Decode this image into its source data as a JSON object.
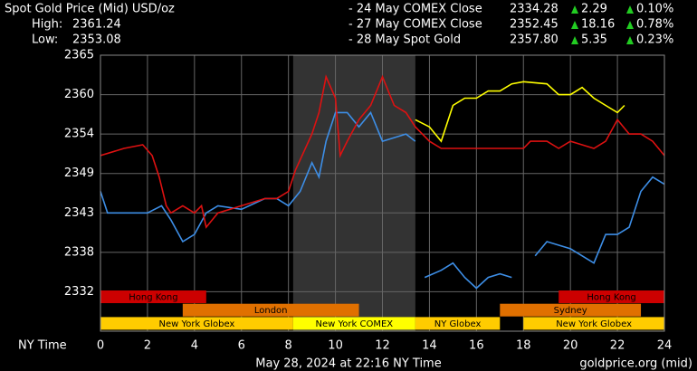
{
  "chart_data": {
    "type": "line",
    "title": "Spot Gold Price (Mid) USD/oz",
    "stats": [
      {
        "label": "High:",
        "value": "2361.24"
      },
      {
        "label": "Low:",
        "value": "2353.08"
      }
    ],
    "series": [
      {
        "name": "- 24 May COMEX Close",
        "color": "#3d8ee6",
        "price": "2334.28",
        "change": "2.29",
        "change_pct": "0.10%",
        "x": [
          0,
          0.3,
          1,
          2,
          2.6,
          3,
          3.5,
          4,
          4.5,
          5,
          6,
          7,
          7.5,
          8,
          8.5,
          9,
          9.3,
          9.6,
          10,
          10.5,
          11,
          11.5,
          12,
          13,
          13.4,
          null,
          13.8,
          14.5,
          15,
          15.5,
          16,
          16.5,
          17,
          17.5,
          null,
          18.5,
          19,
          20,
          21,
          21.5,
          22,
          22.5,
          23,
          23.5,
          24
        ],
        "values": [
          2346,
          2343,
          2343,
          2343,
          2344,
          2342,
          2339,
          2340,
          2343,
          2344,
          2343.5,
          2345,
          2345,
          2344,
          2346,
          2350,
          2348,
          2353,
          2357,
          2357,
          2355,
          2357,
          2353,
          2354,
          2353,
          null,
          2334,
          2335,
          2336,
          2334,
          2332.5,
          2334,
          2334.5,
          2334,
          null,
          2337,
          2339,
          2338,
          2336,
          2340,
          2340,
          2341,
          2346,
          2348,
          2347
        ]
      },
      {
        "name": "- 27 May COMEX Close",
        "color": "#dd1111",
        "price": "2352.45",
        "change": "18.16",
        "change_pct": "0.78%",
        "x": [
          0,
          1,
          1.8,
          2.2,
          2.5,
          2.8,
          3,
          3.5,
          4,
          4.3,
          4.5,
          5,
          6,
          7,
          7.5,
          8,
          8.3,
          9,
          9.3,
          9.6,
          10,
          10.2,
          10.5,
          11,
          11.5,
          12,
          12.5,
          13,
          13.4,
          14,
          14.5,
          15,
          17,
          18,
          18.3,
          19,
          19.5,
          20,
          21,
          21.5,
          22,
          22.5,
          23,
          23.5,
          24
        ],
        "values": [
          2351,
          2352,
          2352.5,
          2351,
          2348,
          2344,
          2343,
          2344,
          2343,
          2344,
          2341,
          2343,
          2344,
          2345,
          2345,
          2346,
          2349,
          2354,
          2357,
          2362,
          2359,
          2351,
          2353,
          2356,
          2358,
          2362,
          2358,
          2357,
          2355,
          2353,
          2352,
          2352,
          2352,
          2352,
          2353,
          2353,
          2352,
          2353,
          2352,
          2353,
          2356,
          2354,
          2354,
          2353,
          2351
        ]
      },
      {
        "name": "- 28 May Spot Gold",
        "color": "#ffff00",
        "price": "2357.80",
        "change": "5.35",
        "change_pct": "0.23%",
        "x": [
          13.4,
          14,
          14.5,
          15,
          15.5,
          16,
          16.5,
          17,
          17.5,
          18,
          19,
          19.5,
          20,
          20.5,
          21,
          21.5,
          22,
          22.3
        ],
        "values": [
          2356,
          2355,
          2353,
          2358,
          2359,
          2359,
          2360,
          2360,
          2361,
          2361.3,
          2361,
          2359.5,
          2359.5,
          2360.5,
          2359,
          2358,
          2357,
          2358
        ]
      }
    ],
    "x_label": "NY Time",
    "xlim": [
      0,
      24
    ],
    "xticks": [
      0,
      2,
      4,
      6,
      8,
      10,
      12,
      14,
      16,
      18,
      20,
      22,
      24
    ],
    "ylim": [
      2326.5,
      2365
    ],
    "yticks": [
      2365,
      {
        "value": 2359.5,
        "label": "2360"
      },
      2354,
      {
        "value": 2348.5,
        "label": "2349"
      },
      2343,
      {
        "value": 2337.5,
        "label": "2338"
      },
      2332
    ],
    "grid": true,
    "highlight": [
      8.2,
      13.4
    ],
    "sessions": [
      {
        "name": "Hong Kong",
        "start": 0,
        "end": 4.5,
        "row": 0,
        "color": "#cc0000"
      },
      {
        "name": "Hong Kong",
        "start": 19.5,
        "end": 24,
        "row": 0,
        "color": "#cc0000"
      },
      {
        "name": "London",
        "start": 3.5,
        "end": 11,
        "row": 1,
        "color": "#e07000"
      },
      {
        "name": "Sydney",
        "start": 17,
        "end": 23,
        "row": 1,
        "color": "#e07000"
      },
      {
        "name": "New York Globex",
        "start": 0,
        "end": 8.2,
        "row": 2,
        "color": "#ffcc00"
      },
      {
        "name": "New York COMEX",
        "start": 8.2,
        "end": 13.4,
        "row": 2,
        "color": "#ffff00"
      },
      {
        "name": "NY Globex",
        "start": 13.4,
        "end": 17,
        "row": 2,
        "color": "#ffcc00"
      },
      {
        "name": "New York Globex",
        "start": 18,
        "end": 24,
        "row": 2,
        "color": "#ffcc00"
      }
    ],
    "footer": "May 28, 2024 at 22:16 NY Time",
    "source": "goldprice.org (mid)"
  }
}
